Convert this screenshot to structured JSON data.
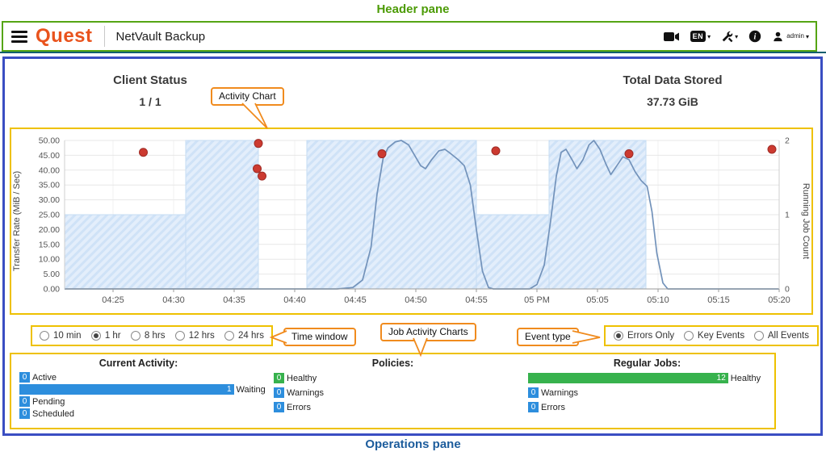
{
  "annotations": {
    "header_pane": "Header pane",
    "operations_pane": "Operations pane",
    "callouts": {
      "activity_chart": "Activity Chart",
      "time_window": "Time window",
      "job_activity_charts": "Job Activity Charts",
      "event_type": "Event type"
    }
  },
  "icons": {
    "caret": "▾",
    "menu": "hamburger-icon",
    "video": "video-camera-icon",
    "language": "language-badge",
    "tools": "wrench-icon",
    "info": "info-icon",
    "user": "person-icon"
  },
  "header": {
    "logo_text": "Quest",
    "app_title": "NetVault Backup",
    "language_badge": "EN",
    "user_label": "admin"
  },
  "summary": {
    "client_status": {
      "label": "Client Status",
      "value": "1 / 1"
    },
    "total_data_stored": {
      "label": "Total Data Stored",
      "value": "37.73 GiB"
    }
  },
  "time_window": {
    "options": [
      {
        "label": "10 min",
        "selected": false
      },
      {
        "label": "1 hr",
        "selected": true
      },
      {
        "label": "8 hrs",
        "selected": false
      },
      {
        "label": "12 hrs",
        "selected": false
      },
      {
        "label": "24 hrs",
        "selected": false
      }
    ]
  },
  "event_type": {
    "options": [
      {
        "label": "Errors Only",
        "selected": true
      },
      {
        "label": "Key Events",
        "selected": false
      },
      {
        "label": "All Events",
        "selected": false
      }
    ]
  },
  "operations": {
    "groups": [
      {
        "title": "Current Activity:",
        "rows": [
          {
            "label": "Active",
            "value": 0,
            "color": "#2d8edd",
            "bar_pct": 0
          },
          {
            "label": "Waiting",
            "value": 1,
            "color": "#2d8edd",
            "bar_pct": 90
          },
          {
            "label": "Pending",
            "value": 0,
            "color": "#2d8edd",
            "bar_pct": 0
          },
          {
            "label": "Scheduled",
            "value": 0,
            "color": "#2d8edd",
            "bar_pct": 0
          }
        ]
      },
      {
        "title": "Policies:",
        "rows": [
          {
            "label": "Healthy",
            "value": 0,
            "color": "#37b24d",
            "bar_pct": 0
          },
          {
            "label": "Warnings",
            "value": 0,
            "color": "#2d8edd",
            "bar_pct": 0
          },
          {
            "label": "Errors",
            "value": 0,
            "color": "#2d8edd",
            "bar_pct": 0
          }
        ]
      },
      {
        "title": "Regular Jobs:",
        "rows": [
          {
            "label": "Healthy",
            "value": 12,
            "color": "#37b24d",
            "bar_pct": 84
          },
          {
            "label": "Warnings",
            "value": 0,
            "color": "#2d8edd",
            "bar_pct": 0
          },
          {
            "label": "Errors",
            "value": 0,
            "color": "#2d8edd",
            "bar_pct": 0
          }
        ]
      }
    ]
  },
  "chart_data": {
    "type": "line",
    "title": "Activity Chart",
    "x_axis": {
      "base_time": "04:20",
      "domain_minutes": [
        1,
        60
      ],
      "tick_minutes": [
        5,
        10,
        15,
        20,
        25,
        30,
        35,
        40,
        45,
        50,
        55,
        60
      ],
      "tick_labels": [
        "04:25",
        "04:30",
        "04:35",
        "04:40",
        "04:45",
        "04:50",
        "04:55",
        "05 PM",
        "05:05",
        "05:10",
        "05:15",
        "05:20"
      ]
    },
    "left_axis": {
      "label": "Transfer Rate (MiB / Sec)",
      "range": [
        0,
        50
      ],
      "tick_step": 5
    },
    "right_axis": {
      "label": "Running Job Count",
      "range": [
        0,
        2
      ],
      "ticks": [
        0,
        1,
        2
      ]
    },
    "series": [
      {
        "name": "Running Job Count",
        "type": "step-area",
        "axis": "right",
        "fill": "#dce9f8",
        "segments": [
          [
            1,
            11,
            1
          ],
          [
            11,
            17,
            2
          ],
          [
            21,
            35,
            2
          ],
          [
            35,
            41,
            1
          ],
          [
            41,
            49,
            2
          ]
        ]
      },
      {
        "name": "Transfer Rate",
        "type": "line",
        "axis": "left",
        "color": "#7292ba",
        "points": [
          [
            1,
            0
          ],
          [
            23.5,
            0
          ],
          [
            24.8,
            0.5
          ],
          [
            25.6,
            3
          ],
          [
            26.3,
            14
          ],
          [
            26.8,
            32
          ],
          [
            27.3,
            44
          ],
          [
            27.7,
            47.5
          ],
          [
            28.3,
            49.5
          ],
          [
            28.8,
            50
          ],
          [
            29.4,
            48.5
          ],
          [
            29.9,
            45
          ],
          [
            30.4,
            41.5
          ],
          [
            30.8,
            40.5
          ],
          [
            31.3,
            43.5
          ],
          [
            31.9,
            46.5
          ],
          [
            32.4,
            47
          ],
          [
            32.9,
            45.5
          ],
          [
            33.5,
            43.5
          ],
          [
            34,
            41.5
          ],
          [
            34.5,
            35
          ],
          [
            35,
            20
          ],
          [
            35.5,
            6
          ],
          [
            36,
            0.5
          ],
          [
            36.4,
            0
          ],
          [
            39.4,
            0
          ],
          [
            40,
            1.5
          ],
          [
            40.6,
            8
          ],
          [
            41.1,
            22
          ],
          [
            41.6,
            38
          ],
          [
            42,
            46
          ],
          [
            42.4,
            47
          ],
          [
            42.9,
            43.5
          ],
          [
            43.3,
            40.5
          ],
          [
            43.8,
            43.5
          ],
          [
            44.3,
            48.5
          ],
          [
            44.7,
            50
          ],
          [
            45.2,
            47
          ],
          [
            45.7,
            42
          ],
          [
            46.1,
            38.5
          ],
          [
            46.6,
            41.5
          ],
          [
            47.1,
            44.5
          ],
          [
            47.6,
            43.5
          ],
          [
            48.1,
            39.5
          ],
          [
            48.6,
            36.5
          ],
          [
            49.1,
            34.5
          ],
          [
            49.5,
            26
          ],
          [
            49.9,
            12
          ],
          [
            50.4,
            2
          ],
          [
            50.8,
            0
          ],
          [
            60,
            0
          ]
        ]
      },
      {
        "name": "Error Events",
        "type": "scatter",
        "axis": "left",
        "color": "#cc3a30",
        "points": [
          [
            7.5,
            46
          ],
          [
            17,
            49
          ],
          [
            16.9,
            40.5
          ],
          [
            17.3,
            38
          ],
          [
            27.2,
            45.5
          ],
          [
            36.6,
            46.5
          ],
          [
            47.6,
            45.5
          ],
          [
            59.4,
            47
          ]
        ]
      }
    ]
  }
}
